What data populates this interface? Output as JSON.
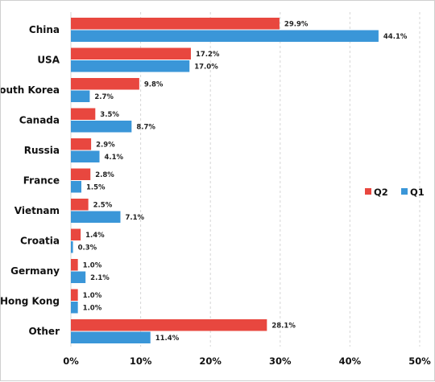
{
  "chart_data": {
    "type": "bar",
    "orientation": "horizontal",
    "categories": [
      "China",
      "USA",
      "South Korea",
      "Canada",
      "Russia",
      "France",
      "Vietnam",
      "Croatia",
      "Germany",
      "Hong Kong",
      "Other"
    ],
    "series": [
      {
        "name": "Q2",
        "color": "#e8473f",
        "values": [
          29.9,
          17.2,
          9.8,
          3.5,
          2.9,
          2.8,
          2.5,
          1.4,
          1.0,
          1.0,
          28.1
        ],
        "labels": [
          "29.9%",
          "17.2%",
          "9.8%",
          "3.5%",
          "2.9%",
          "2.8%",
          "2.5%",
          "1.4%",
          "1.0%",
          "1.0%",
          "28.1%"
        ]
      },
      {
        "name": "Q1",
        "color": "#3a96d8",
        "values": [
          44.1,
          17.0,
          2.7,
          8.7,
          4.1,
          1.5,
          7.1,
          0.3,
          2.1,
          1.0,
          11.4
        ],
        "labels": [
          "44.1%",
          "17.0%",
          "2.7%",
          "8.7%",
          "4.1%",
          "1.5%",
          "7.1%",
          "0.3%",
          "2.1%",
          "1.0%",
          "11.4%"
        ]
      }
    ],
    "xlim": [
      0,
      50
    ],
    "xticks": [
      0,
      10,
      20,
      30,
      40,
      50
    ],
    "xtick_labels": [
      "0%",
      "10%",
      "20%",
      "30%",
      "40%",
      "50%"
    ],
    "grid": "vertical dashed",
    "legend_position": "right"
  }
}
